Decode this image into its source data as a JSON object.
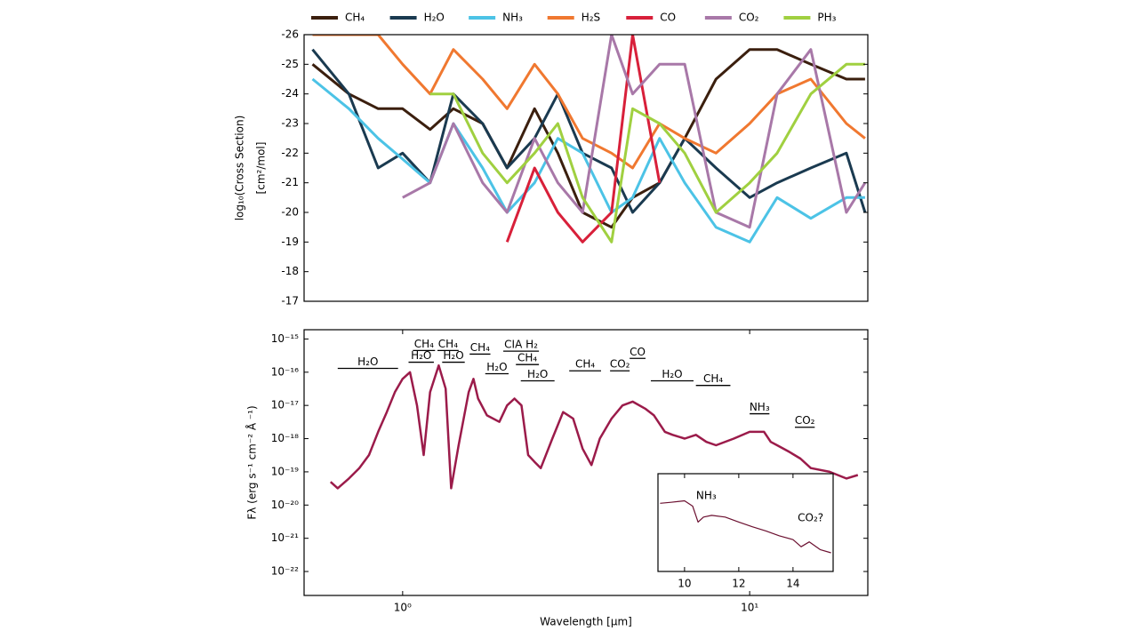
{
  "chart_data": [
    {
      "type": "line",
      "ylabel": [
        "log₁₀(Cross Section)",
        "[cm²/mol]"
      ],
      "xlog": true,
      "xlim": [
        0.52,
        21.9
      ],
      "ylim": [
        -17,
        -26
      ],
      "yticks": [
        -26,
        -25,
        -24,
        -23,
        -22,
        -21,
        -20,
        -19,
        -18,
        -17
      ],
      "x": [
        0.55,
        0.7,
        0.85,
        1.0,
        1.2,
        1.4,
        1.7,
        2.0,
        2.4,
        2.8,
        3.3,
        4.0,
        4.6,
        5.5,
        6.5,
        8,
        10,
        12,
        15,
        19,
        21.5
      ],
      "series": [
        {
          "name": "CH₄",
          "color": "#3b1f0e",
          "values": [
            -25,
            -24,
            -23.5,
            -23.5,
            -22.8,
            -23.5,
            -23,
            -21.5,
            -23.5,
            -22,
            -20,
            -19.5,
            -20.5,
            -21,
            -22.5,
            -24.5,
            -25.5,
            -25.5,
            -25,
            -24.5,
            -24.5
          ]
        },
        {
          "name": "H₂O",
          "color": "#1a3a50",
          "values": [
            -25.5,
            -24,
            -21.5,
            -22,
            -21,
            -24,
            -23,
            -21.5,
            -22.5,
            -24,
            -22,
            -21.5,
            -20,
            -21,
            -22.5,
            -21.5,
            -20.5,
            -21,
            -21.5,
            -22,
            -20
          ]
        },
        {
          "name": "NH₃",
          "color": "#4cc3e6",
          "values": [
            -24.5,
            -23.5,
            -22.5,
            -21.8,
            -21,
            -23,
            -21.5,
            -20,
            -21,
            -22.5,
            -22,
            -20,
            -20.5,
            -22.5,
            -21,
            -19.5,
            -19,
            -20.5,
            -19.8,
            -20.5,
            -20.5
          ]
        },
        {
          "name": "H₂S",
          "color": "#f07830",
          "values": [
            -26,
            -26,
            -26,
            -25,
            -24,
            -25.5,
            -24.5,
            -23.5,
            -25,
            -24,
            -22.5,
            -22,
            -21.5,
            -23,
            -22.5,
            -22,
            -23,
            -24,
            -24.5,
            -23,
            -22.5
          ]
        },
        {
          "name": "CO",
          "color": "#d8203a",
          "values": [
            null,
            null,
            null,
            null,
            null,
            null,
            null,
            -19,
            -21.5,
            -20,
            -19,
            -20,
            -26,
            -21,
            null,
            null,
            null,
            null,
            null,
            null,
            null
          ]
        },
        {
          "name": "CO₂",
          "color": "#a878a8",
          "values": [
            null,
            null,
            null,
            -20.5,
            -21,
            -23,
            -21,
            -20,
            -22.5,
            -21,
            -20,
            -26,
            -24,
            -25,
            -25,
            -20,
            -19.5,
            -24,
            -25.5,
            -20,
            -21
          ]
        },
        {
          "name": "PH₃",
          "color": "#a0d040",
          "values": [
            null,
            null,
            null,
            null,
            -24,
            -24,
            -22,
            -21,
            -22,
            -23,
            -20.5,
            -19,
            -23.5,
            -23,
            -22,
            -20,
            -21,
            -22,
            -24,
            -25,
            -25
          ]
        }
      ]
    },
    {
      "type": "line",
      "xlabel": "Wavelength [μm]",
      "ylabel": [
        "Fλ (erg s⁻¹ cm⁻² Å ⁻¹)"
      ],
      "xlog": true,
      "ylog": true,
      "xlim": [
        0.52,
        21.9
      ],
      "ylim": [
        1.9e-23,
        1.9e-15
      ],
      "xticks": [
        {
          "value": 1,
          "label": "10⁰"
        },
        {
          "value": 10,
          "label": "10¹"
        }
      ],
      "yticks": [
        {
          "value": 1e-15,
          "label": "10⁻¹⁵"
        },
        {
          "value": 1e-16,
          "label": "10⁻¹⁶"
        },
        {
          "value": 1e-17,
          "label": "10⁻¹⁷"
        },
        {
          "value": 1e-18,
          "label": "10⁻¹⁸"
        },
        {
          "value": 1e-19,
          "label": "10⁻¹⁹"
        },
        {
          "value": 1e-20,
          "label": "10⁻²⁰"
        },
        {
          "value": 1e-21,
          "label": "10⁻²¹"
        },
        {
          "value": 1e-22,
          "label": "10⁻²²"
        }
      ],
      "x": [
        0.62,
        0.65,
        0.7,
        0.75,
        0.8,
        0.85,
        0.9,
        0.95,
        1.0,
        1.05,
        1.1,
        1.15,
        1.2,
        1.27,
        1.33,
        1.38,
        1.45,
        1.55,
        1.6,
        1.65,
        1.75,
        1.9,
        2.0,
        2.1,
        2.2,
        2.3,
        2.4,
        2.5,
        2.7,
        2.9,
        3.1,
        3.3,
        3.5,
        3.7,
        4.0,
        4.3,
        4.6,
        5.0,
        5.3,
        5.7,
        6.0,
        6.5,
        7.0,
        7.5,
        8.0,
        9.0,
        10.0,
        11.0,
        11.5,
        12.0,
        13.0,
        14.0,
        15.0,
        17,
        19,
        20.5
      ],
      "series": [
        {
          "color": "#9b1b4a",
          "values": [
            5e-20,
            3.2e-20,
            6.3e-20,
            1.3e-19,
            3.2e-19,
            1.6e-18,
            6.3e-18,
            2.5e-17,
            6.3e-17,
            1e-16,
            1e-17,
            3.2e-19,
            2.5e-17,
            1.6e-16,
            3.2e-17,
            3.2e-20,
            6.3e-19,
            2.5e-17,
            6.3e-17,
            1.6e-17,
            5e-18,
            3.2e-18,
            1e-17,
            1.6e-17,
            1e-17,
            3.2e-19,
            2e-19,
            1.3e-19,
            1e-18,
            6.3e-18,
            4e-18,
            5e-19,
            1.6e-19,
            1e-18,
            4e-18,
            1e-17,
            1.3e-17,
            8e-18,
            5e-18,
            1.6e-18,
            1.3e-18,
            1e-18,
            1.3e-18,
            8e-19,
            6.3e-19,
            1e-18,
            1.6e-18,
            1.6e-18,
            8e-19,
            6.3e-19,
            4e-19,
            2.5e-19,
            1.3e-19,
            1e-19,
            6.3e-20,
            8e-20
          ]
        }
      ],
      "annotations": [
        {
          "text": "H₂O",
          "x0": 0.65,
          "x1": 0.97,
          "y": 1.3e-16
        },
        {
          "text": "CH₄",
          "x0": 1.07,
          "x1": 1.24,
          "y": 4.5e-16
        },
        {
          "text": "H₂O",
          "x0": 1.04,
          "x1": 1.23,
          "y": 2e-16
        },
        {
          "text": "CH₄",
          "x0": 1.26,
          "x1": 1.45,
          "y": 4.5e-16
        },
        {
          "text": "H₂O",
          "x0": 1.3,
          "x1": 1.51,
          "y": 2e-16
        },
        {
          "text": "CH₄",
          "x0": 1.56,
          "x1": 1.79,
          "y": 3.5e-16
        },
        {
          "text": "CIA H₂",
          "x0": 1.95,
          "x1": 2.47,
          "y": 4.3e-16
        },
        {
          "text": "H₂O",
          "x0": 1.73,
          "x1": 2.02,
          "y": 9e-17
        },
        {
          "text": "CH₄",
          "x0": 2.12,
          "x1": 2.47,
          "y": 1.7e-16
        },
        {
          "text": "H₂O",
          "x0": 2.19,
          "x1": 2.74,
          "y": 5.5e-17
        },
        {
          "text": "CH₄",
          "x0": 3.02,
          "x1": 3.73,
          "y": 1.1e-16
        },
        {
          "text": "CO₂",
          "x0": 3.96,
          "x1": 4.51,
          "y": 1.1e-16
        },
        {
          "text": "CO",
          "x0": 4.51,
          "x1": 5.01,
          "y": 2.6e-16
        },
        {
          "text": "H₂O",
          "x0": 5.19,
          "x1": 6.89,
          "y": 5.5e-17
        },
        {
          "text": "CH₄",
          "x0": 7.0,
          "x1": 8.8,
          "y": 4e-17
        },
        {
          "text": "NH₃",
          "x0": 10.0,
          "x1": 11.4,
          "y": 5.6e-18
        },
        {
          "text": "CO₂",
          "x0": 13.5,
          "x1": 15.4,
          "y": 2.2e-18
        }
      ]
    },
    {
      "type": "line",
      "ylog": true,
      "xlim": [
        9.02,
        15.48
      ],
      "ylim": [
        4e-19,
        1.5e-17
      ],
      "xticks": [
        10,
        12,
        14
      ],
      "x": [
        9.1,
        9.5,
        10.0,
        10.3,
        10.5,
        10.7,
        11.0,
        11.5,
        12.0,
        12.5,
        13.0,
        13.5,
        14.0,
        14.3,
        14.6,
        15.0,
        15.4
      ],
      "series": [
        {
          "color": "#6b1030",
          "values": [
            5e-18,
            5.2e-18,
            5.5e-18,
            4.5e-18,
            2.5e-18,
            3e-18,
            3.2e-18,
            3e-18,
            2.5e-18,
            2.1e-18,
            1.8e-18,
            1.5e-18,
            1.3e-18,
            1e-18,
            1.2e-18,
            9e-19,
            8e-19
          ]
        }
      ],
      "annotations": [
        {
          "text": "NH₃",
          "x": 10.8,
          "y": 6.6e-18
        },
        {
          "text": "CO₂?",
          "x": 14.65,
          "y": 2.9e-18
        }
      ]
    }
  ]
}
